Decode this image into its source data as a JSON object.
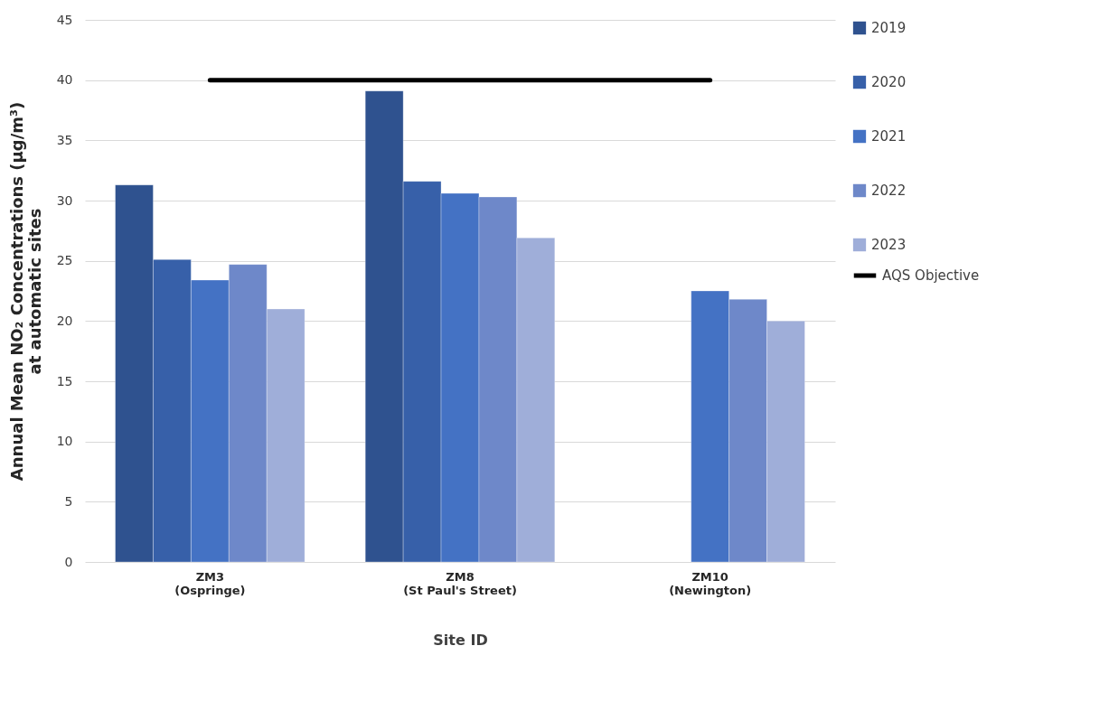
{
  "chart_data": {
    "type": "bar",
    "xlabel": "Site ID",
    "ylabel": "Annual Mean NO₂ Concentrations (µg/m³)\nat automatic sites",
    "categories": [
      "ZM3\n(Ospringe)",
      "ZM8\n(St Paul's Street)",
      "ZM10\n(Newington)"
    ],
    "series": [
      {
        "name": "2019",
        "color": "#2f528f",
        "values": [
          31.3,
          39.1,
          null
        ]
      },
      {
        "name": "2020",
        "color": "#3760a9",
        "values": [
          25.1,
          31.6,
          null
        ]
      },
      {
        "name": "2021",
        "color": "#4472c4",
        "values": [
          23.4,
          30.6,
          22.5
        ]
      },
      {
        "name": "2022",
        "color": "#6e88c9",
        "values": [
          24.7,
          30.3,
          21.8
        ]
      },
      {
        "name": "2023",
        "color": "#9faed9",
        "values": [
          21.0,
          26.9,
          20.0
        ]
      },
      {
        "name": "AQS Objective",
        "type": "line",
        "color": "#000000",
        "values": [
          40,
          40,
          40
        ]
      }
    ],
    "ylim": [
      0,
      45
    ],
    "yticks": [
      0,
      5,
      10,
      15,
      20,
      25,
      30,
      35,
      40,
      45
    ],
    "grid": "y",
    "legend": "right"
  }
}
